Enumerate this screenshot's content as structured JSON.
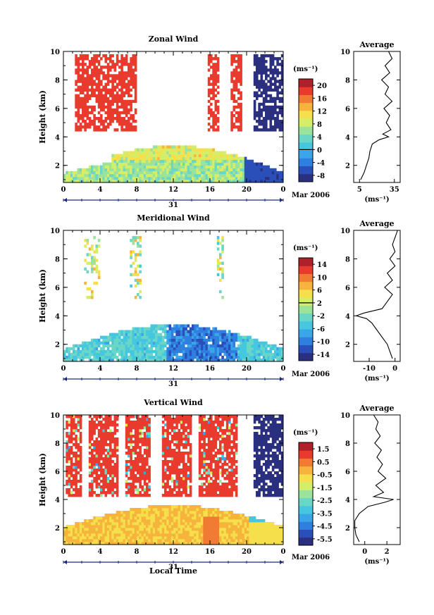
{
  "figure": {
    "x_axis_label": "Local Time",
    "date_label": "31",
    "month_label": "Mar 2006",
    "height_label": "Height (km)",
    "units": "(ms⁻¹)",
    "average_title": "Average",
    "colormap": [
      "#2b2f7f",
      "#2a4fb8",
      "#2f7fe0",
      "#3aa6e8",
      "#46c7e0",
      "#6ad6c6",
      "#9be39b",
      "#d5ee6a",
      "#f5e04c",
      "#f6b43c",
      "#f27b34",
      "#e83b2e",
      "#b0202a"
    ]
  },
  "chart_data": [
    {
      "type": "heatmap",
      "title": "Zonal Wind",
      "ylabel": "Height (km)",
      "xlabel": "",
      "x_ticks": [
        "0",
        "4",
        "8",
        "12",
        "16",
        "20",
        "0"
      ],
      "y_ticks": [
        "2",
        "4",
        "6",
        "8",
        "10"
      ],
      "xlim": [
        0,
        24
      ],
      "ylim": [
        0.8,
        10
      ],
      "colorbar": {
        "ticks": [
          "20",
          "16",
          "12",
          "8",
          "4",
          "0",
          "-4",
          "-8"
        ],
        "range": [
          -10,
          22
        ],
        "zero_line": 0
      },
      "profile": {
        "title": "Average",
        "x_ticks": [
          "5",
          "35"
        ],
        "xlim": [
          0,
          40
        ],
        "heights": [
          1.0,
          1.5,
          2.0,
          2.5,
          3.0,
          3.5,
          3.8,
          4.0,
          4.2,
          4.5,
          5.0,
          5.5,
          6.0,
          6.5,
          7.0,
          7.5,
          8.0,
          8.5,
          9.0,
          9.5,
          10.0
        ],
        "values": [
          6,
          9,
          11,
          13,
          14,
          16,
          22,
          30,
          25,
          32,
          28,
          31,
          26,
          33,
          27,
          30,
          24,
          31,
          27,
          33,
          30
        ]
      }
    },
    {
      "type": "heatmap",
      "title": "Meridional Wind",
      "ylabel": "Height (km)",
      "xlabel": "",
      "x_ticks": [
        "0",
        "4",
        "8",
        "12",
        "16",
        "20",
        "0"
      ],
      "y_ticks": [
        "2",
        "4",
        "6",
        "8",
        "10"
      ],
      "xlim": [
        0,
        24
      ],
      "ylim": [
        0.8,
        10
      ],
      "colorbar": {
        "ticks": [
          "14",
          "10",
          "6",
          "2",
          "-2",
          "-6",
          "-10",
          "-14"
        ],
        "range": [
          -16,
          16
        ],
        "zero_line": 2
      },
      "profile": {
        "title": "Average",
        "x_ticks": [
          "-10",
          "0"
        ],
        "xlim": [
          -16,
          2
        ],
        "heights": [
          1.0,
          1.5,
          2.0,
          2.5,
          3.0,
          3.5,
          3.8,
          4.0,
          4.2,
          4.5,
          5.0,
          5.5,
          6.0,
          6.5,
          7.0,
          7.5,
          8.0,
          8.5,
          9.0,
          9.5,
          10.0
        ],
        "values": [
          -1,
          -2,
          -3,
          -5,
          -7,
          -9,
          -11,
          -15,
          -12,
          -5,
          -3,
          -1,
          -4,
          -1,
          -3,
          0,
          -2,
          0,
          -1,
          0,
          1
        ]
      }
    },
    {
      "type": "heatmap",
      "title": "Vertical Wind",
      "ylabel": "Height (km)",
      "xlabel": "Local Time",
      "x_ticks": [
        "0",
        "4",
        "8",
        "12",
        "16",
        "20",
        "0"
      ],
      "y_ticks": [
        "2",
        "4",
        "6",
        "8",
        "10"
      ],
      "xlim": [
        0,
        24
      ],
      "ylim": [
        0.8,
        10
      ],
      "colorbar": {
        "ticks": [
          "1.5",
          "0.5",
          "-0.5",
          "-1.5",
          "-2.5",
          "-3.5",
          "-4.5",
          "-5.5"
        ],
        "range": [
          -6.5,
          2.0
        ]
      },
      "profile": {
        "title": "Average",
        "x_ticks": [
          "0",
          "2"
        ],
        "xlim": [
          -1,
          3.2
        ],
        "heights": [
          1.0,
          1.5,
          2.0,
          2.5,
          3.0,
          3.5,
          3.8,
          4.0,
          4.2,
          4.5,
          5.0,
          5.5,
          6.0,
          6.5,
          7.0,
          7.5,
          8.0,
          8.5,
          9.0,
          9.5,
          10.0
        ],
        "values": [
          -0.5,
          -0.8,
          -0.9,
          -0.9,
          -0.5,
          0.3,
          1.8,
          2.6,
          0.8,
          1.7,
          1.0,
          1.9,
          1.2,
          1.6,
          1.1,
          1.5,
          0.9,
          1.4,
          1.0,
          1.2,
          0.8
        ]
      }
    }
  ]
}
